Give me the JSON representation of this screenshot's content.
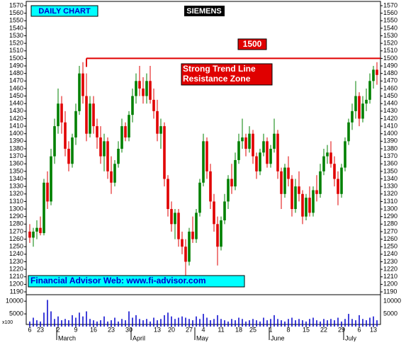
{
  "chart_data": {
    "type": "candlestick",
    "title": "SIEMENS",
    "subtitle": "DAILY CHART",
    "annotations": {
      "resistance_label": "Strong Trend Line Resistance Zone",
      "footer": "Financial Advisor Web: www.fi-advisor.com",
      "volume_unit": "x100"
    },
    "resistance_line": {
      "y": 1500,
      "x_start": 16,
      "color": "#e00000"
    },
    "up_color": "#008000",
    "down_color": "#e00000",
    "volume_color": "#0000cc",
    "xlim": [
      -1,
      99
    ],
    "ylim": [
      1190,
      1570
    ],
    "yticks": [
      1190,
      1200,
      1210,
      1220,
      1230,
      1240,
      1250,
      1260,
      1270,
      1280,
      1290,
      1300,
      1310,
      1320,
      1330,
      1340,
      1350,
      1360,
      1370,
      1380,
      1390,
      1400,
      1410,
      1420,
      1430,
      1440,
      1450,
      1460,
      1470,
      1480,
      1490,
      1500,
      1510,
      1520,
      1530,
      1540,
      1550,
      1560,
      1570
    ],
    "xticks": [
      {
        "value": 0,
        "label": "6"
      },
      {
        "value": 3,
        "label": "23"
      },
      {
        "value": 8,
        "label": "2"
      },
      {
        "value": 13,
        "label": "9"
      },
      {
        "value": 18,
        "label": "16"
      },
      {
        "value": 23,
        "label": "23"
      },
      {
        "value": 28,
        "label": "30"
      },
      {
        "value": 36,
        "label": "13"
      },
      {
        "value": 40,
        "label": "20"
      },
      {
        "value": 45,
        "label": "27"
      },
      {
        "value": 49,
        "label": "4"
      },
      {
        "value": 54,
        "label": "11"
      },
      {
        "value": 59,
        "label": "18"
      },
      {
        "value": 63,
        "label": "25"
      },
      {
        "value": 68,
        "label": "1"
      },
      {
        "value": 73,
        "label": "8"
      },
      {
        "value": 78,
        "label": "15"
      },
      {
        "value": 83,
        "label": "22"
      },
      {
        "value": 88,
        "label": "29"
      },
      {
        "value": 93,
        "label": "6"
      },
      {
        "value": 97,
        "label": "13"
      }
    ],
    "month_ticks": [
      {
        "value": 10,
        "label": "March"
      },
      {
        "value": 31,
        "label": "April"
      },
      {
        "value": 49,
        "label": "May"
      },
      {
        "value": 70,
        "label": "June"
      },
      {
        "value": 91,
        "label": "July"
      }
    ],
    "ohlc": [
      [
        1270,
        1280,
        1255,
        1262
      ],
      [
        1262,
        1275,
        1250,
        1270
      ],
      [
        1270,
        1285,
        1260,
        1275
      ],
      [
        1275,
        1290,
        1265,
        1268
      ],
      [
        1268,
        1340,
        1265,
        1335
      ],
      [
        1335,
        1350,
        1300,
        1310
      ],
      [
        1310,
        1380,
        1305,
        1370
      ],
      [
        1370,
        1420,
        1360,
        1410
      ],
      [
        1410,
        1460,
        1400,
        1440
      ],
      [
        1440,
        1450,
        1400,
        1415
      ],
      [
        1415,
        1430,
        1370,
        1380
      ],
      [
        1380,
        1390,
        1350,
        1360
      ],
      [
        1360,
        1400,
        1355,
        1395
      ],
      [
        1395,
        1440,
        1385,
        1430
      ],
      [
        1430,
        1490,
        1425,
        1480
      ],
      [
        1480,
        1495,
        1440,
        1450
      ],
      [
        1450,
        1480,
        1390,
        1400
      ],
      [
        1400,
        1450,
        1395,
        1440
      ],
      [
        1440,
        1450,
        1400,
        1410
      ],
      [
        1410,
        1420,
        1380,
        1395
      ],
      [
        1395,
        1410,
        1360,
        1370
      ],
      [
        1370,
        1400,
        1350,
        1390
      ],
      [
        1390,
        1395,
        1340,
        1350
      ],
      [
        1350,
        1370,
        1320,
        1335
      ],
      [
        1335,
        1365,
        1330,
        1360
      ],
      [
        1360,
        1390,
        1355,
        1380
      ],
      [
        1380,
        1420,
        1375,
        1410
      ],
      [
        1410,
        1415,
        1390,
        1395
      ],
      [
        1395,
        1430,
        1390,
        1425
      ],
      [
        1425,
        1460,
        1415,
        1450
      ],
      [
        1450,
        1480,
        1440,
        1470
      ],
      [
        1470,
        1490,
        1450,
        1460
      ],
      [
        1460,
        1475,
        1440,
        1450
      ],
      [
        1450,
        1480,
        1440,
        1470
      ],
      [
        1470,
        1490,
        1440,
        1445
      ],
      [
        1445,
        1460,
        1420,
        1430
      ],
      [
        1430,
        1445,
        1390,
        1400
      ],
      [
        1400,
        1420,
        1380,
        1410
      ],
      [
        1410,
        1415,
        1330,
        1340
      ],
      [
        1340,
        1345,
        1290,
        1300
      ],
      [
        1300,
        1310,
        1270,
        1280
      ],
      [
        1280,
        1300,
        1260,
        1295
      ],
      [
        1295,
        1300,
        1250,
        1260
      ],
      [
        1260,
        1270,
        1240,
        1250
      ],
      [
        1250,
        1260,
        1212,
        1230
      ],
      [
        1230,
        1275,
        1225,
        1270
      ],
      [
        1270,
        1290,
        1255,
        1260
      ],
      [
        1260,
        1300,
        1255,
        1295
      ],
      [
        1295,
        1340,
        1290,
        1335
      ],
      [
        1335,
        1400,
        1330,
        1390
      ],
      [
        1390,
        1395,
        1340,
        1350
      ],
      [
        1350,
        1360,
        1300,
        1310
      ],
      [
        1310,
        1320,
        1270,
        1280
      ],
      [
        1280,
        1290,
        1225,
        1250
      ],
      [
        1250,
        1290,
        1245,
        1285
      ],
      [
        1285,
        1320,
        1280,
        1310
      ],
      [
        1310,
        1345,
        1300,
        1340
      ],
      [
        1340,
        1360,
        1320,
        1330
      ],
      [
        1330,
        1375,
        1325,
        1365
      ],
      [
        1365,
        1400,
        1360,
        1390
      ],
      [
        1390,
        1420,
        1380,
        1395
      ],
      [
        1395,
        1400,
        1370,
        1380
      ],
      [
        1380,
        1410,
        1375,
        1400
      ],
      [
        1400,
        1405,
        1360,
        1370
      ],
      [
        1370,
        1375,
        1340,
        1350
      ],
      [
        1350,
        1380,
        1345,
        1375
      ],
      [
        1375,
        1400,
        1370,
        1390
      ],
      [
        1390,
        1395,
        1355,
        1360
      ],
      [
        1360,
        1385,
        1355,
        1380
      ],
      [
        1380,
        1420,
        1375,
        1400
      ],
      [
        1400,
        1405,
        1340,
        1350
      ],
      [
        1350,
        1355,
        1300,
        1320
      ],
      [
        1320,
        1360,
        1315,
        1355
      ],
      [
        1355,
        1370,
        1330,
        1340
      ],
      [
        1340,
        1345,
        1290,
        1300
      ],
      [
        1300,
        1340,
        1295,
        1330
      ],
      [
        1330,
        1350,
        1310,
        1320
      ],
      [
        1320,
        1325,
        1280,
        1290
      ],
      [
        1290,
        1320,
        1285,
        1315
      ],
      [
        1315,
        1330,
        1290,
        1295
      ],
      [
        1295,
        1330,
        1290,
        1325
      ],
      [
        1325,
        1345,
        1310,
        1320
      ],
      [
        1320,
        1360,
        1315,
        1350
      ],
      [
        1350,
        1380,
        1345,
        1370
      ],
      [
        1370,
        1385,
        1360,
        1375
      ],
      [
        1375,
        1390,
        1355,
        1360
      ],
      [
        1360,
        1370,
        1330,
        1340
      ],
      [
        1340,
        1350,
        1305,
        1320
      ],
      [
        1320,
        1360,
        1315,
        1355
      ],
      [
        1355,
        1395,
        1350,
        1390
      ],
      [
        1390,
        1420,
        1385,
        1415
      ],
      [
        1415,
        1440,
        1405,
        1430
      ],
      [
        1430,
        1470,
        1420,
        1450
      ],
      [
        1450,
        1455,
        1410,
        1420
      ],
      [
        1420,
        1450,
        1415,
        1440
      ],
      [
        1440,
        1460,
        1430,
        1445
      ],
      [
        1445,
        1480,
        1440,
        1470
      ],
      [
        1470,
        1490,
        1460,
        1485
      ],
      [
        1485,
        1495,
        1465,
        1478
      ]
    ],
    "volume": [
      2000,
      3500,
      2500,
      2000,
      5500,
      10500,
      6000,
      3000,
      4000,
      2500,
      3000,
      2500,
      4500,
      3500,
      5500,
      4000,
      6000,
      3000,
      2500,
      2000,
      2500,
      4000,
      2000,
      2500,
      3500,
      2000,
      3000,
      2500,
      6000,
      3500,
      4500,
      3000,
      2500,
      3000,
      2000,
      3500,
      2500,
      3000,
      4500,
      5500,
      4000,
      3000,
      3500,
      4000,
      3500,
      3000,
      2500,
      4000,
      3000,
      5000,
      3500,
      2500,
      3000,
      4500,
      3000,
      2500,
      2000,
      3000,
      2500,
      3500,
      3000,
      2000,
      2500,
      3000,
      2500,
      2000,
      3500,
      2500,
      3000,
      4500,
      3000,
      2500,
      2000,
      3000,
      3500,
      2500,
      3000,
      2500,
      2000,
      3000,
      3500,
      2500,
      2000,
      3000,
      2500,
      3000,
      2500,
      3500,
      2000,
      3000,
      5000,
      3000,
      2500,
      4500,
      3000,
      2500,
      3500,
      4000,
      2500
    ],
    "vlim": [
      0,
      12000
    ],
    "vticks": [
      5000,
      10000
    ]
  }
}
